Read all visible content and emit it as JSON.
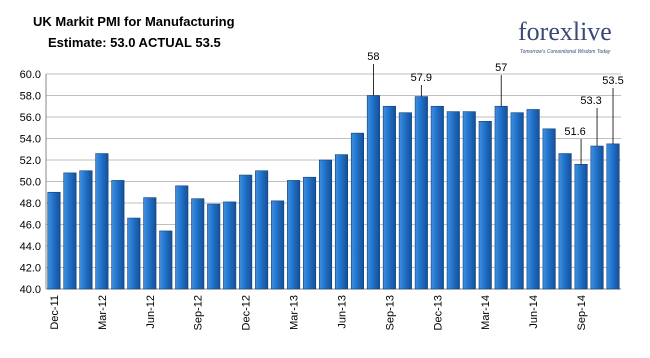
{
  "chart_data": {
    "type": "bar",
    "title": "UK Markit PMI for Manufacturing",
    "subtitle": "Estimate: 53.0  ACTUAL 53.5",
    "logo": "forexlive",
    "logo_tagline": "Tomorrow's Conventional Wisdom Today",
    "categories": [
      "Dec-11",
      null,
      null,
      "Mar-12",
      null,
      null,
      "Jun-12",
      null,
      null,
      "Sep-12",
      null,
      null,
      "Dec-12",
      null,
      null,
      "Mar-13",
      null,
      null,
      "Jun-13",
      null,
      null,
      "Sep-13",
      null,
      null,
      "Dec-13",
      null,
      null,
      "Mar-14",
      null,
      null,
      "Jun-14",
      null,
      null,
      "Sep-14",
      null,
      null
    ],
    "values": [
      49.0,
      50.8,
      51.0,
      52.6,
      50.1,
      46.6,
      48.5,
      45.4,
      49.6,
      48.4,
      47.9,
      48.1,
      50.6,
      51.0,
      48.2,
      50.1,
      50.4,
      52.0,
      52.5,
      54.5,
      58.0,
      57.0,
      56.4,
      57.9,
      57.0,
      56.5,
      56.5,
      55.6,
      57.0,
      56.4,
      56.7,
      54.9,
      52.6,
      51.6,
      53.3,
      53.5
    ],
    "value_labels": [
      null,
      null,
      null,
      null,
      null,
      null,
      null,
      null,
      null,
      null,
      null,
      null,
      null,
      null,
      null,
      null,
      null,
      null,
      null,
      null,
      "58",
      null,
      null,
      "57.9",
      null,
      null,
      null,
      null,
      "57",
      null,
      null,
      null,
      null,
      "51.6",
      "53.3",
      "53.5"
    ],
    "color": "#1f6fc8",
    "ylim": [
      40,
      60
    ],
    "yticks": [
      {
        "value": 40,
        "label": "40.0"
      },
      {
        "value": 42,
        "label": "42.0"
      },
      {
        "value": 44,
        "label": "44.0"
      },
      {
        "value": 46,
        "label": "46.0"
      },
      {
        "value": 48,
        "label": "48.0"
      },
      {
        "value": 50,
        "label": "50.0"
      },
      {
        "value": 52,
        "label": "52.0"
      },
      {
        "value": 54,
        "label": "54.0"
      },
      {
        "value": 56,
        "label": "56.0"
      },
      {
        "value": 58,
        "label": "58.0"
      },
      {
        "value": 60,
        "label": "60.0"
      }
    ],
    "grid": true
  }
}
